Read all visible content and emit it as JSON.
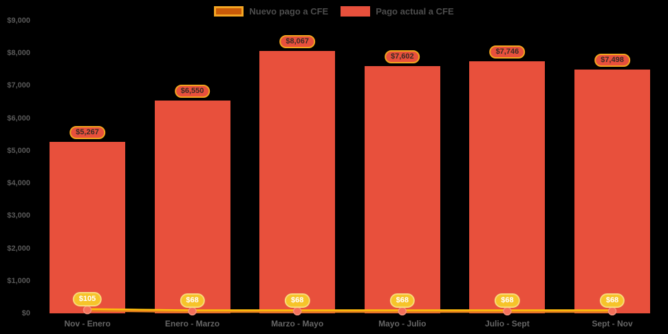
{
  "chart_data": {
    "type": "bar",
    "title": "",
    "categories": [
      "Nov - Enero",
      "Enero - Marzo",
      "Marzo - Mayo",
      "Mayo - Julio",
      "Julio - Sept",
      "Sept - Nov"
    ],
    "series": [
      {
        "name": "Nuevo pago a CFE",
        "type": "line",
        "color": "#E8821E",
        "edge_color": "#FFC30B",
        "marker_color": "#F3705A",
        "marker_edge": "#F7937E",
        "values": [
          105,
          68,
          68,
          68,
          68,
          68
        ],
        "labels": [
          "$105",
          "$68",
          "$68",
          "$68",
          "$68",
          "$68"
        ]
      },
      {
        "name": "Pago actual a CFE",
        "type": "bar",
        "color": "#E8503C",
        "values": [
          5267,
          6550,
          8067,
          7602,
          7746,
          7498
        ],
        "labels": [
          "$5,267",
          "$6,550",
          "$8,067",
          "$7,602",
          "$7,746",
          "$7,498"
        ]
      }
    ],
    "ylim": [
      0,
      9000
    ],
    "ytick_values": [
      0,
      1000,
      2000,
      3000,
      4000,
      5000,
      6000,
      7000,
      8000,
      9000
    ],
    "ytick_labels": [
      "$0",
      "$1,000",
      "$2,000",
      "$3,000",
      "$4,000",
      "$5,000",
      "$6,000",
      "$7,000",
      "$8,000",
      "$9,000"
    ],
    "grid": false,
    "legend_position": "top-center",
    "background": "#000000"
  },
  "legend": {
    "items": [
      {
        "label": "Nuevo pago a CFE",
        "swatch_fill": "#C95A08",
        "swatch_border": "#F5A623"
      },
      {
        "label": "Pago actual a CFE",
        "swatch_fill": "#E8503C",
        "swatch_border": "#E8503C"
      }
    ]
  },
  "colors": {
    "background": "#000000",
    "bar": "#E8503C",
    "bar_pill_border": "#F2A51E",
    "gold_pill": "#F6C42A",
    "line": "#E8821E",
    "line_edge": "#FFC30B",
    "marker": "#F3705A",
    "axis_text": "#595959",
    "xaxis_text": "#666666",
    "legend_text": "#4D4D4D"
  }
}
